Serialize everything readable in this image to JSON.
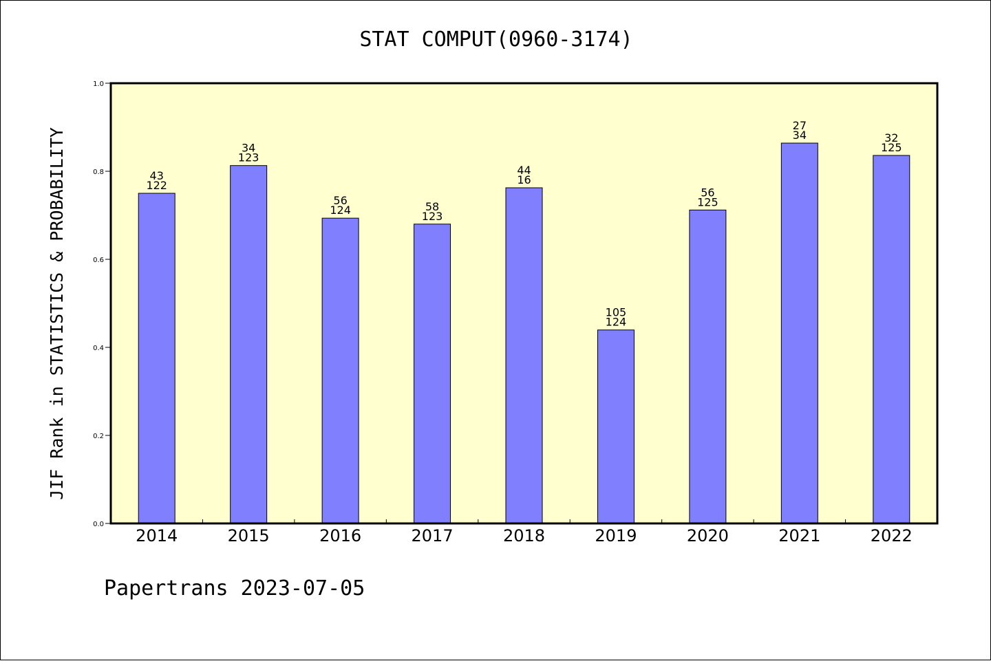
{
  "chart_data": {
    "type": "bar",
    "title": "STAT COMPUT(0960-3174)",
    "xlabel": "",
    "ylabel": "JIF Rank in STATISTICS & PROBABILITY",
    "ylim": [
      0,
      1
    ],
    "yticks": [
      "0.0",
      "0.2",
      "0.4",
      "0.6",
      "0.8",
      "1.0"
    ],
    "categories": [
      "2014",
      "2015",
      "2016",
      "2017",
      "2018",
      "2019",
      "2020",
      "2021",
      "2022"
    ],
    "values": [
      0.75,
      0.813,
      0.6935,
      0.68,
      0.7625,
      0.4395,
      0.712,
      0.864,
      0.836
    ],
    "bar_labels": [
      {
        "rank": "43",
        "total": "122"
      },
      {
        "rank": "34",
        "total": "123"
      },
      {
        "rank": "56",
        "total": "124"
      },
      {
        "rank": "58",
        "total": "123"
      },
      {
        "rank": "44",
        "total": "16"
      },
      {
        "rank": "105",
        "total": "124"
      },
      {
        "rank": "56",
        "total": "125"
      },
      {
        "rank": "27",
        "total": "34"
      },
      {
        "rank": "32",
        "total": "125"
      }
    ],
    "grid": false,
    "plot_background": "#ffffd0",
    "bar_color": "#8080ff"
  },
  "footer": "Papertrans 2023-07-05"
}
